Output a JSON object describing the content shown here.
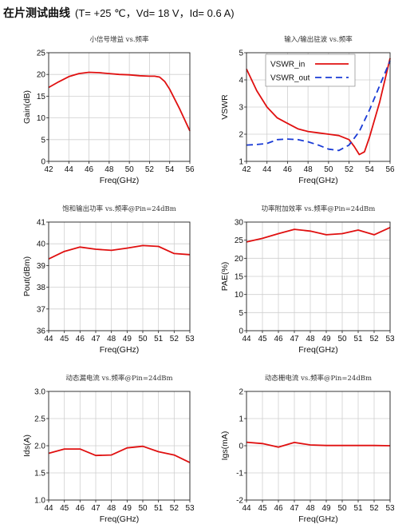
{
  "page": {
    "heading": "在片测试曲线",
    "conditions": "(T= +25 ℃，Vd= 18 V，Id= 0.6 A)"
  },
  "chart_data": [
    {
      "type": "line",
      "title": "小信号增益 vs.频率",
      "xlabel": "Freq(GHz)",
      "ylabel": "Gain(dB)",
      "xlim": [
        42,
        56
      ],
      "ylim": [
        0,
        25
      ],
      "xticks": [
        42,
        44,
        46,
        48,
        50,
        52,
        54,
        56
      ],
      "yticks": [
        0,
        5,
        10,
        15,
        20,
        25
      ],
      "grid": true,
      "series": [
        {
          "color": "#e01010",
          "dash": "",
          "x": [
            42,
            43,
            44,
            45,
            46,
            47,
            48,
            49,
            50,
            51,
            52,
            52.5,
            53,
            53.5,
            54,
            55,
            56
          ],
          "y": [
            17,
            18.3,
            19.5,
            20.2,
            20.5,
            20.4,
            20.2,
            20.0,
            19.9,
            19.7,
            19.6,
            19.6,
            19.4,
            18.4,
            16.6,
            12,
            7
          ]
        }
      ]
    },
    {
      "type": "line",
      "title": "输入/输出驻波 vs.频率",
      "xlabel": "Freq(GHz)",
      "ylabel": "VSWR",
      "xlim": [
        42,
        56
      ],
      "ylim": [
        1,
        5
      ],
      "xticks": [
        42,
        44,
        46,
        48,
        50,
        52,
        54,
        56
      ],
      "yticks": [
        1,
        2,
        3,
        4,
        5
      ],
      "grid": true,
      "legend": "top-left",
      "series": [
        {
          "name": "VSWR_in",
          "color": "#e01010",
          "dash": "",
          "x": [
            42,
            43,
            44,
            45,
            46,
            47,
            48,
            49,
            50,
            51,
            52,
            52.5,
            53,
            53.5,
            54,
            55,
            56
          ],
          "y": [
            4.4,
            3.6,
            3.0,
            2.6,
            2.4,
            2.2,
            2.1,
            2.05,
            2.0,
            1.95,
            1.8,
            1.55,
            1.25,
            1.35,
            1.9,
            3.2,
            4.8
          ]
        },
        {
          "name": "VSWR_out",
          "color": "#1a3bd6",
          "dash": "8,5",
          "x": [
            42,
            43,
            44,
            45,
            46,
            47,
            48,
            49,
            50,
            51,
            52,
            53,
            54,
            55,
            56
          ],
          "y": [
            1.6,
            1.62,
            1.66,
            1.8,
            1.82,
            1.8,
            1.72,
            1.6,
            1.45,
            1.4,
            1.6,
            2.1,
            2.9,
            3.8,
            4.7
          ]
        }
      ]
    },
    {
      "type": "line",
      "title": "饱和输出功率 vs.频率@Pin=24dBm",
      "xlabel": "Freq(GHz)",
      "ylabel": "Pout(dBm)",
      "xlim": [
        44,
        53
      ],
      "ylim": [
        36,
        41
      ],
      "xticks": [
        44,
        45,
        46,
        47,
        48,
        49,
        50,
        51,
        52,
        53
      ],
      "yticks": [
        36,
        37,
        38,
        39,
        40,
        41
      ],
      "grid": true,
      "series": [
        {
          "color": "#e01010",
          "dash": "",
          "x": [
            44,
            45,
            46,
            47,
            48,
            49,
            50,
            51,
            52,
            53
          ],
          "y": [
            39.3,
            39.65,
            39.85,
            39.75,
            39.7,
            39.8,
            39.92,
            39.88,
            39.55,
            39.5
          ]
        }
      ]
    },
    {
      "type": "line",
      "title": "功率附加效率 vs.频率@Pin=24dBm",
      "xlabel": "Freq(GHz)",
      "ylabel": "PAE(%)",
      "xlim": [
        44,
        53
      ],
      "ylim": [
        0,
        30
      ],
      "xticks": [
        44,
        45,
        46,
        47,
        48,
        49,
        50,
        51,
        52,
        53
      ],
      "yticks": [
        0,
        5,
        10,
        15,
        20,
        25,
        30
      ],
      "grid": true,
      "series": [
        {
          "color": "#e01010",
          "dash": "",
          "x": [
            44,
            45,
            46,
            47,
            48,
            49,
            50,
            51,
            52,
            53
          ],
          "y": [
            24.5,
            25.5,
            26.8,
            28.0,
            27.5,
            26.5,
            26.8,
            27.8,
            26.5,
            28.5
          ]
        }
      ]
    },
    {
      "type": "line",
      "title": "动态漏电流 vs.频率@Pin=24dBm",
      "xlabel": "Freq(GHz)",
      "ylabel": "Ids(A)",
      "xlim": [
        44,
        53
      ],
      "ylim": [
        1.0,
        3.0
      ],
      "xticks": [
        44,
        45,
        46,
        47,
        48,
        49,
        50,
        51,
        52,
        53
      ],
      "yticks": [
        1.0,
        1.5,
        2.0,
        2.5,
        3.0
      ],
      "ytick_decimals": 1,
      "grid": true,
      "series": [
        {
          "color": "#e01010",
          "dash": "",
          "x": [
            44,
            45,
            46,
            47,
            48,
            49,
            50,
            51,
            52,
            53
          ],
          "y": [
            1.86,
            1.94,
            1.94,
            1.82,
            1.83,
            1.96,
            1.99,
            1.89,
            1.83,
            1.69
          ]
        }
      ]
    },
    {
      "type": "line",
      "title": "动态栅电流 vs.频率@Pin=24dBm",
      "xlabel": "Freq(GHz)",
      "ylabel": "Igs(mA)",
      "xlim": [
        44,
        53
      ],
      "ylim": [
        -2,
        2
      ],
      "xticks": [
        44,
        45,
        46,
        47,
        48,
        49,
        50,
        51,
        52,
        53
      ],
      "yticks": [
        -2,
        -1,
        0,
        1,
        2
      ],
      "grid": true,
      "series": [
        {
          "color": "#e01010",
          "dash": "",
          "x": [
            44,
            45,
            46,
            47,
            48,
            49,
            50,
            51,
            52,
            53
          ],
          "y": [
            0.13,
            0.08,
            -0.05,
            0.12,
            0.03,
            0.01,
            0.01,
            0.01,
            0.01,
            0.0
          ]
        }
      ]
    }
  ]
}
